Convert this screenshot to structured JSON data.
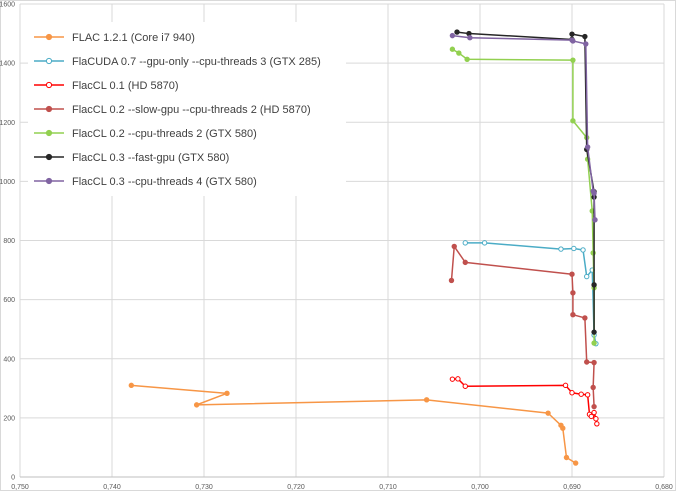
{
  "chart_data": {
    "type": "line",
    "title": "",
    "xlabel": "",
    "ylabel": "",
    "x_axis": {
      "reversed": true,
      "range": [
        0.68,
        0.75
      ],
      "ticks": [
        0.75,
        0.74,
        0.73,
        0.72,
        0.71,
        0.7,
        0.69,
        0.68
      ],
      "tick_labels": [
        "0,750",
        "0,740",
        "0,730",
        "0,720",
        "0,710",
        "0,700",
        "0,690",
        "0,680"
      ]
    },
    "y_axis": {
      "range": [
        0,
        1600
      ],
      "ticks": [
        0,
        200,
        400,
        600,
        800,
        1000,
        1200,
        1400,
        1600
      ],
      "tick_labels": [
        "0",
        "200",
        "400",
        "600",
        "800",
        "1000",
        "1200",
        "1400",
        "1600"
      ]
    },
    "grid": true,
    "legend_position": "top-left",
    "series": [
      {
        "name": "FLAC 1.2.1 (Core i7 940)",
        "color": "#f79646",
        "marker": "filled",
        "points": [
          [
            0.7379,
            310
          ],
          [
            0.7275,
            283
          ],
          [
            0.7308,
            244
          ],
          [
            0.7058,
            261
          ],
          [
            0.6926,
            216
          ],
          [
            0.6912,
            175
          ],
          [
            0.691,
            165
          ],
          [
            0.6906,
            66
          ],
          [
            0.6896,
            47
          ]
        ]
      },
      {
        "name": "FlaCUDA 0.7 --gpu-only --cpu-threads 3 (GTX 285)",
        "color": "#4bacc6",
        "marker": "open",
        "points": [
          [
            0.7016,
            792
          ],
          [
            0.6995,
            792
          ],
          [
            0.6912,
            771
          ],
          [
            0.6898,
            773
          ],
          [
            0.6888,
            768
          ],
          [
            0.6884,
            678
          ],
          [
            0.6878,
            700
          ],
          [
            0.6876,
            480
          ],
          [
            0.6874,
            451
          ]
        ]
      },
      {
        "name": "FlacCL 0.1 (HD 5870)",
        "color": "#ff0000",
        "marker": "open",
        "points": [
          [
            0.703,
            331
          ],
          [
            0.7024,
            332
          ],
          [
            0.7016,
            307
          ],
          [
            0.6907,
            310
          ],
          [
            0.69,
            285
          ],
          [
            0.689,
            280
          ],
          [
            0.6883,
            278
          ],
          [
            0.6881,
            212
          ],
          [
            0.6879,
            205
          ],
          [
            0.6874,
            197
          ],
          [
            0.6876,
            218
          ],
          [
            0.6873,
            180
          ]
        ]
      },
      {
        "name": "FlacCL 0.2 --slow-gpu --cpu-threads 2 (HD 5870)",
        "color": "#c0504d",
        "marker": "filled",
        "points": [
          [
            0.7031,
            665
          ],
          [
            0.7028,
            780
          ],
          [
            0.7016,
            726
          ],
          [
            0.69,
            686
          ],
          [
            0.6899,
            623
          ],
          [
            0.6899,
            549
          ],
          [
            0.6886,
            538
          ],
          [
            0.6884,
            389
          ],
          [
            0.6876,
            387
          ],
          [
            0.6877,
            303
          ],
          [
            0.6876,
            238
          ]
        ]
      },
      {
        "name": "FlacCL 0.2 --cpu-threads 2 (GTX 580)",
        "color": "#92d050",
        "marker": "filled",
        "points": [
          [
            0.703,
            1447
          ],
          [
            0.7023,
            1434
          ],
          [
            0.7014,
            1413
          ],
          [
            0.6899,
            1410
          ],
          [
            0.6899,
            1205
          ],
          [
            0.6884,
            1148
          ],
          [
            0.6883,
            1075
          ],
          [
            0.6878,
            900
          ],
          [
            0.6877,
            758
          ],
          [
            0.6876,
            640
          ],
          [
            0.6876,
            453
          ]
        ]
      },
      {
        "name": "FlacCL 0.3 --fast-gpu (GTX 580)",
        "color": "#262626",
        "marker": "filled",
        "points": [
          [
            0.7025,
            1505
          ],
          [
            0.7012,
            1500
          ],
          [
            0.69,
            1480
          ],
          [
            0.69,
            1498
          ],
          [
            0.6886,
            1490
          ],
          [
            0.6884,
            1108
          ],
          [
            0.6876,
            965
          ],
          [
            0.6876,
            947
          ],
          [
            0.6876,
            650
          ],
          [
            0.6876,
            490
          ]
        ]
      },
      {
        "name": "FlacCL 0.3 --cpu-threads 4 (GTX 580)",
        "color": "#8064a2",
        "marker": "filled",
        "points": [
          [
            0.703,
            1493
          ],
          [
            0.7011,
            1486
          ],
          [
            0.69,
            1478
          ],
          [
            0.6899,
            1475
          ],
          [
            0.6885,
            1465
          ],
          [
            0.6883,
            1116
          ],
          [
            0.6877,
            967
          ],
          [
            0.6876,
            960
          ],
          [
            0.6875,
            870
          ]
        ]
      }
    ]
  }
}
